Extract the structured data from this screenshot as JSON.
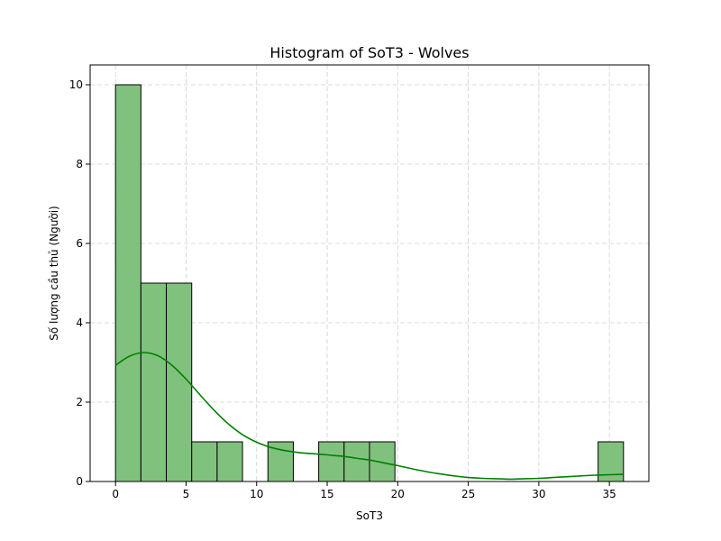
{
  "chart_data": {
    "type": "bar",
    "title": "Histogram of SoT3 - Wolves",
    "xlabel": "SoT3",
    "ylabel": "Số lượng cầu thủ (Người)",
    "xlim": [
      -1.8,
      37.8
    ],
    "ylim": [
      0,
      10.5
    ],
    "xticks": [
      0,
      5,
      10,
      15,
      20,
      25,
      30,
      35
    ],
    "yticks": [
      0,
      2,
      4,
      6,
      8,
      10
    ],
    "grid": true,
    "bin_start": 0,
    "bin_width": 1.8,
    "counts": [
      10,
      5,
      5,
      1,
      1,
      0,
      1,
      0,
      1,
      1,
      1,
      0,
      0,
      0,
      0,
      0,
      0,
      0,
      0,
      1
    ],
    "bar_color": "#80c27d",
    "edge_color": "#000000",
    "kde": {
      "color": "#008000",
      "x": [
        0,
        1,
        2,
        3,
        4,
        5,
        6,
        7,
        8,
        9,
        10,
        11,
        12,
        13,
        14,
        15,
        16,
        17,
        18,
        19,
        20,
        21,
        22,
        23,
        24,
        25,
        26,
        27,
        28,
        29,
        30,
        31,
        32,
        33,
        34,
        35,
        36
      ],
      "y": [
        2.93,
        3.16,
        3.25,
        3.17,
        2.93,
        2.58,
        2.18,
        1.79,
        1.45,
        1.18,
        0.99,
        0.86,
        0.78,
        0.73,
        0.7,
        0.67,
        0.64,
        0.59,
        0.54,
        0.47,
        0.4,
        0.32,
        0.25,
        0.19,
        0.14,
        0.1,
        0.08,
        0.07,
        0.06,
        0.07,
        0.08,
        0.1,
        0.12,
        0.14,
        0.16,
        0.17,
        0.18
      ]
    }
  }
}
